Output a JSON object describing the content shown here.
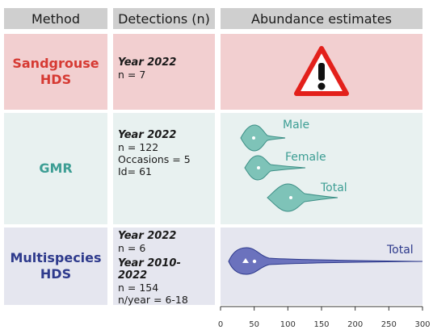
{
  "header": {
    "method": "Method",
    "detections": "Detections (n)",
    "abundance": "Abundance estimates"
  },
  "rows": [
    {
      "method_line1": "Sandgrouse",
      "method_line2": "HDS",
      "method_color": "#d63a33",
      "detections": [
        {
          "year": "Year 2022",
          "lines": [
            "n = 7"
          ]
        }
      ],
      "abundance_icon": "warning-triangle-icon"
    },
    {
      "method_line1": "GMR",
      "method_line2": "",
      "method_color": "#3d9e94",
      "detections": [
        {
          "year": "Year 2022",
          "lines": [
            "n = 122",
            "Occasions = 5",
            "Id= 61"
          ]
        }
      ],
      "violins": [
        "Male",
        "Female",
        "Total"
      ]
    },
    {
      "method_line1": "Multispecies",
      "method_line2": "HDS",
      "method_color": "#2e3a8c",
      "detections": [
        {
          "year": "Year 2022",
          "lines": [
            "n = 6"
          ]
        },
        {
          "year": "Year 2010-2022",
          "lines": [
            "n = 154",
            "n/year = 6-18"
          ]
        }
      ],
      "violins": [
        "Total"
      ]
    }
  ],
  "axis": {
    "ticks": [
      "0",
      "50",
      "100",
      "150",
      "200",
      "250",
      "300"
    ],
    "tick_values": [
      0,
      50,
      100,
      150,
      200,
      250,
      300
    ],
    "range": [
      0,
      300
    ]
  },
  "violin_estimates": {
    "gmr_male": {
      "mean": 47,
      "min": 30,
      "max": 95
    },
    "gmr_female": {
      "mean": 57,
      "min": 35,
      "max": 125
    },
    "gmr_total": {
      "mean": 102,
      "min": 70,
      "max": 175
    },
    "multi_total": {
      "mean": 50,
      "median": 38,
      "min": 10,
      "max": 300
    }
  },
  "colors": {
    "gmr_violin_fill": "#7ec3b8",
    "gmr_violin_stroke": "#3d8f86",
    "multi_violin_fill": "#6b72bd",
    "multi_violin_stroke": "#2e3a8c",
    "warning_red": "#e3201b"
  }
}
